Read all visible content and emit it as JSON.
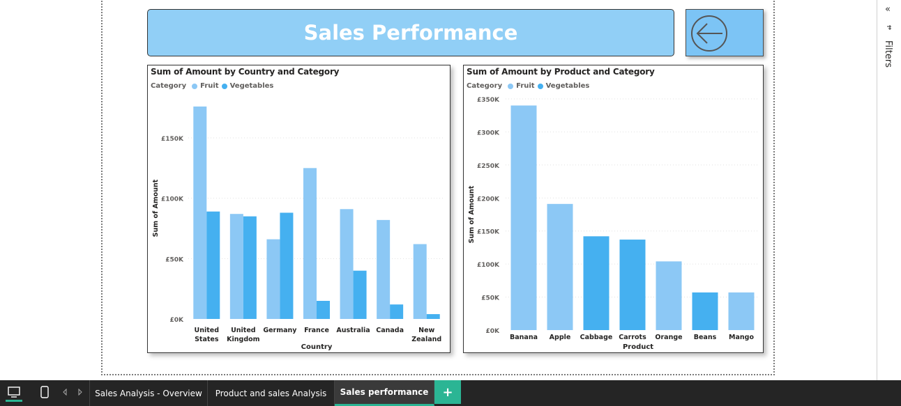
{
  "report": {
    "title": "Sales Performance",
    "back_button_icon": "back-arrow-icon"
  },
  "chart1": {
    "title": "Sum of Amount by Country and Category",
    "legend_title": "Category",
    "legend_fruit": "Fruit",
    "legend_veg": "Vegetables"
  },
  "chart2": {
    "title": "Sum of Amount by Product and Category",
    "legend_title": "Category",
    "legend_fruit": "Fruit",
    "legend_veg": "Vegetables"
  },
  "colors": {
    "fruit": "#8cc8f5",
    "vegetables": "#45b0f0",
    "banner": "#91cff6",
    "tab_accent": "#2bb594"
  },
  "chart_data": [
    {
      "type": "bar",
      "title": "Sum of Amount by Country and Category",
      "xlabel": "Country",
      "ylabel": "Sum of Amount",
      "categories": [
        [
          "United",
          "States"
        ],
        [
          "United",
          "Kingdom"
        ],
        [
          "Germany"
        ],
        [
          "France"
        ],
        [
          "Australia"
        ],
        [
          "Canada"
        ],
        [
          "New",
          "Zealand"
        ]
      ],
      "series": [
        {
          "name": "Fruit",
          "values": [
            176000,
            87000,
            66000,
            125000,
            91000,
            82000,
            62000
          ]
        },
        {
          "name": "Vegetables",
          "values": [
            89000,
            85000,
            88000,
            15000,
            40000,
            12000,
            4000
          ]
        }
      ],
      "yticks": [
        0,
        50000,
        100000,
        150000
      ],
      "ytick_labels": [
        "£0K",
        "£50K",
        "£100K",
        "£150K"
      ],
      "ylim": [
        0,
        180000
      ],
      "legend": "top-left",
      "grid": true
    },
    {
      "type": "bar",
      "title": "Sum of Amount by Product and Category",
      "xlabel": "Product",
      "ylabel": "Sum of Amount",
      "categories": [
        "Banana",
        "Apple",
        "Cabbage",
        "Carrots",
        "Orange",
        "Beans",
        "Mango"
      ],
      "values": [
        340000,
        191000,
        142000,
        137000,
        104000,
        57000,
        57000
      ],
      "category_series": [
        "Fruit",
        "Fruit",
        "Vegetables",
        "Vegetables",
        "Fruit",
        "Vegetables",
        "Fruit"
      ],
      "yticks": [
        0,
        50000,
        100000,
        150000,
        200000,
        250000,
        300000,
        350000
      ],
      "ytick_labels": [
        "£0K",
        "£50K",
        "£100K",
        "£150K",
        "£200K",
        "£250K",
        "£300K",
        "£350K"
      ],
      "ylim": [
        0,
        350000
      ],
      "legend": "top-left",
      "grid": true
    }
  ],
  "filters": {
    "label": "Filters",
    "collapse_icon": "«"
  },
  "tabs": {
    "items": [
      "Sales Analysis - Overview",
      "Product and sales Analysis",
      "Sales performance"
    ],
    "add": "+"
  }
}
